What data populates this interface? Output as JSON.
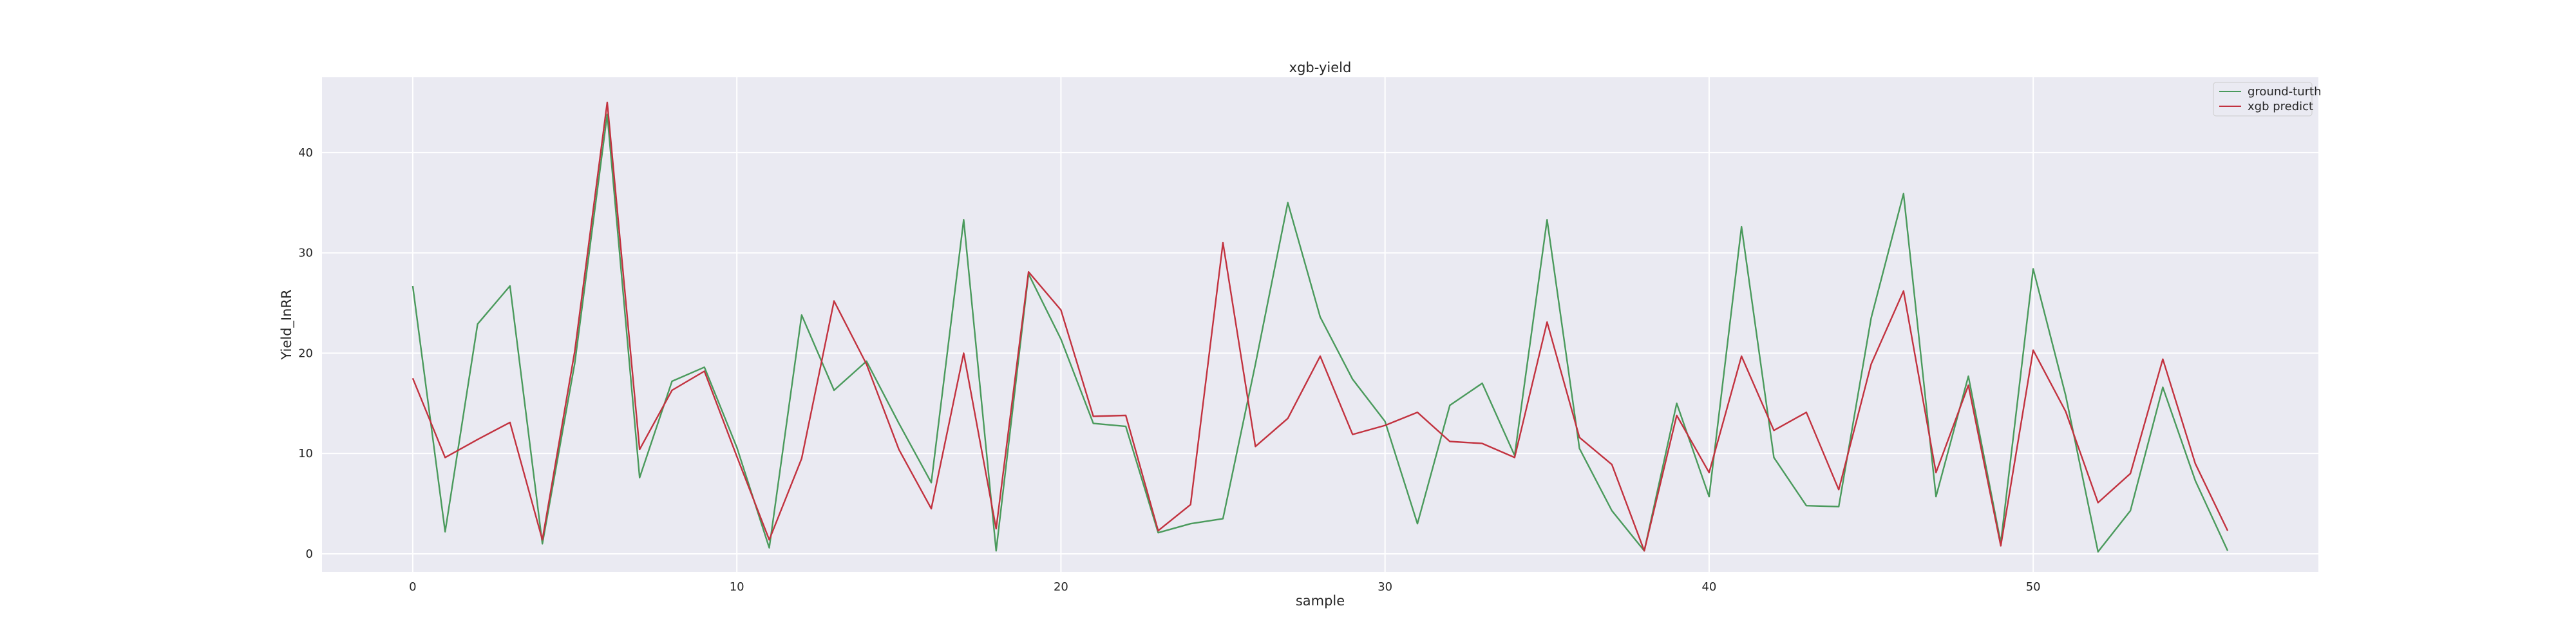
{
  "chart_data": {
    "type": "line",
    "title": "xgb-yield",
    "xlabel": "sample",
    "ylabel": "Yield_InRR",
    "xlim": [
      -2.8,
      58.8
    ],
    "ylim": [
      -1.8,
      47.5
    ],
    "xticks": [
      0,
      10,
      20,
      30,
      40,
      50
    ],
    "yticks": [
      0,
      10,
      20,
      30,
      40
    ],
    "grid": true,
    "legend_position": "top-right",
    "x": [
      0,
      1,
      2,
      3,
      4,
      5,
      6,
      7,
      8,
      9,
      10,
      11,
      12,
      13,
      14,
      15,
      16,
      17,
      18,
      19,
      20,
      21,
      22,
      23,
      24,
      25,
      26,
      27,
      28,
      29,
      30,
      31,
      32,
      33,
      34,
      35,
      36,
      37,
      38,
      39,
      40,
      41,
      42,
      43,
      44,
      45,
      46,
      47,
      48,
      49,
      50,
      51,
      52,
      53,
      54,
      55,
      56
    ],
    "series": [
      {
        "name": "ground-turth",
        "color": "#4a9a5c",
        "values": [
          26.7,
          2.2,
          22.9,
          26.7,
          1.0,
          19.0,
          43.8,
          7.6,
          17.2,
          18.6,
          10.6,
          0.6,
          23.8,
          16.3,
          19.2,
          13.0,
          7.1,
          33.3,
          0.3,
          27.9,
          21.4,
          13.0,
          12.7,
          2.1,
          3.0,
          3.5,
          18.9,
          35.0,
          23.6,
          17.4,
          13.2,
          3.0,
          14.8,
          17.0,
          9.8,
          33.3,
          10.5,
          4.3,
          0.3,
          15.0,
          5.7,
          32.6,
          9.6,
          4.8,
          4.7,
          23.5,
          35.9,
          5.7,
          17.7,
          1.1,
          28.4,
          15.8,
          0.2,
          4.3,
          16.6,
          7.3,
          0.3
        ]
      },
      {
        "name": "xgb predict",
        "color": "#c2323f",
        "values": [
          17.5,
          9.6,
          11.4,
          13.1,
          1.4,
          20.2,
          45.0,
          10.4,
          16.3,
          18.2,
          9.7,
          1.4,
          9.5,
          25.2,
          18.9,
          10.4,
          4.5,
          20.0,
          2.5,
          28.1,
          24.3,
          13.7,
          13.8,
          2.3,
          4.9,
          31.0,
          10.7,
          13.5,
          19.7,
          11.9,
          12.8,
          14.1,
          11.2,
          11.0,
          9.6,
          23.1,
          11.6,
          8.9,
          0.3,
          13.8,
          8.1,
          19.7,
          12.3,
          14.1,
          6.4,
          18.9,
          26.2,
          8.1,
          16.8,
          0.8,
          20.3,
          14.2,
          5.1,
          8.0,
          19.4,
          9.0,
          2.3
        ]
      }
    ]
  }
}
